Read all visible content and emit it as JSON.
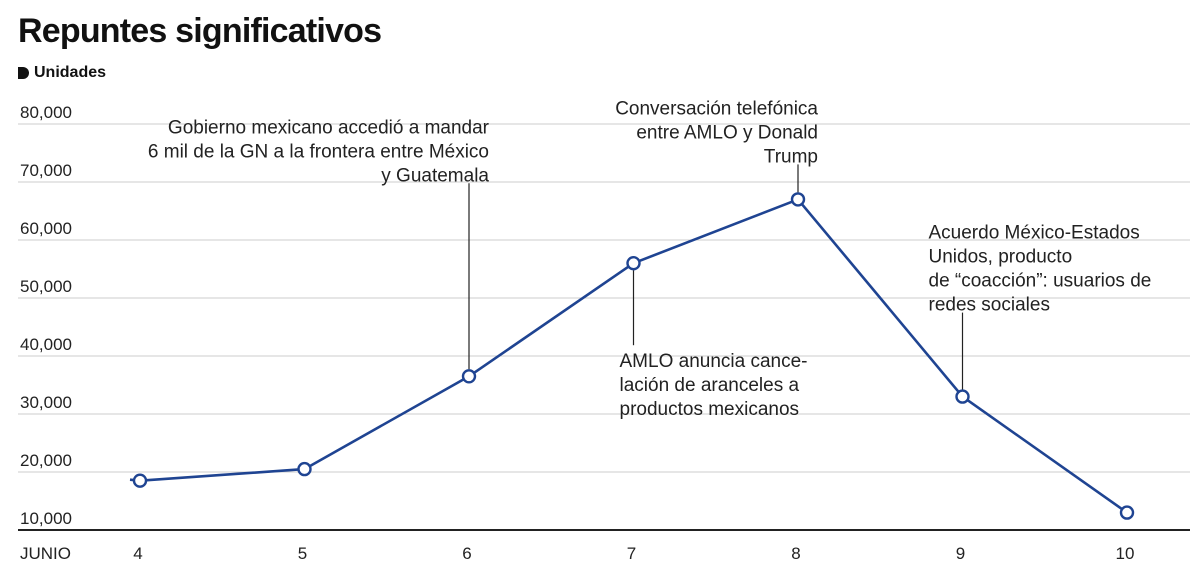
{
  "header": {
    "title": "Repuntes significativos",
    "units": "Unidades"
  },
  "colors": {
    "line": "#1f4492",
    "grid": "#cccccc",
    "axis": "#222222",
    "text": "#222222"
  },
  "chart_data": {
    "type": "line",
    "title": "Repuntes significativos",
    "ylabel": "Unidades",
    "xlabel": "JUNIO",
    "categories": [
      "4",
      "5",
      "6",
      "7",
      "8",
      "9",
      "10"
    ],
    "series": [
      {
        "name": "Unidades",
        "values": [
          18500,
          20500,
          36500,
          56000,
          67000,
          33000,
          13000
        ]
      }
    ],
    "ylim": [
      10000,
      80000
    ],
    "yticks": [
      10000,
      20000,
      30000,
      40000,
      50000,
      60000,
      70000,
      80000
    ],
    "ytick_labels": [
      "10,000",
      "20,000",
      "30,000",
      "40,000",
      "50,000",
      "60,000",
      "70,000",
      "80,000"
    ],
    "grid": true,
    "annotations": [
      {
        "point": 2,
        "placement": "above",
        "align": "end",
        "lines": [
          "Gobierno mexicano accedió a mandar",
          "6 mil de la GN a la frontera entre México",
          "y Guatemala"
        ]
      },
      {
        "point": 3,
        "placement": "below",
        "align": "start",
        "lines": [
          "AMLO anuncia cance-",
          "lación de aranceles a",
          "productos mexicanos"
        ]
      },
      {
        "point": 4,
        "placement": "above",
        "align": "end",
        "lines": [
          "Conversación telefónica",
          "entre AMLO y Donald",
          "Trump"
        ]
      },
      {
        "point": 5,
        "placement": "above",
        "align": "start",
        "lines": [
          "Acuerdo México-Estados",
          "Unidos, producto",
          " de “coacción”: usuarios de",
          "redes sociales"
        ]
      }
    ]
  }
}
